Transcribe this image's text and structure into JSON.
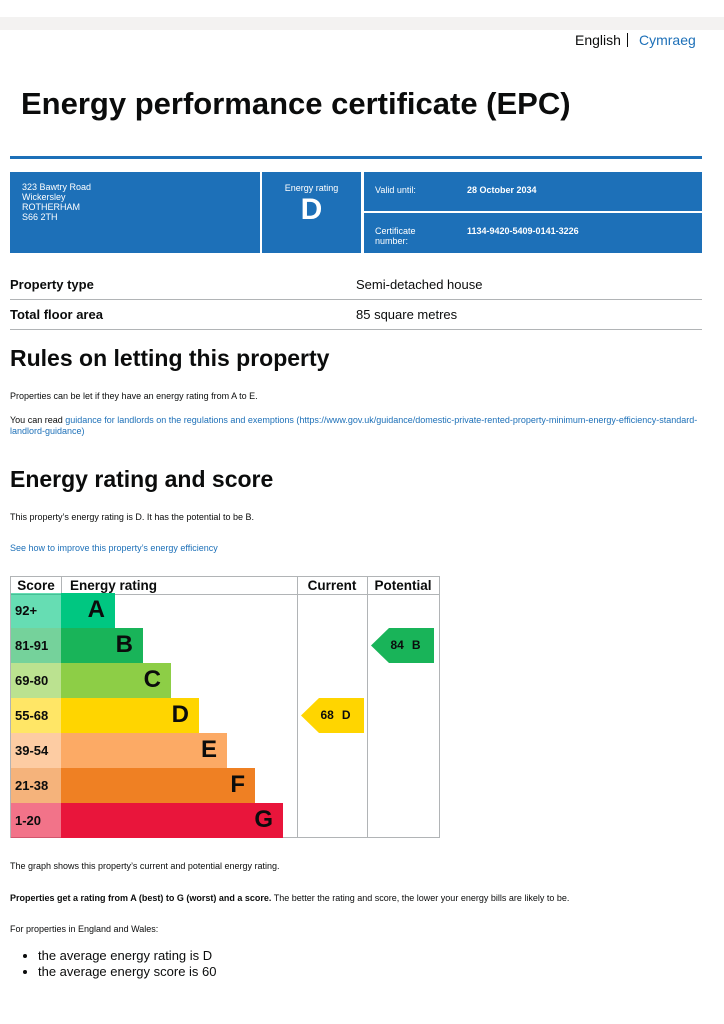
{
  "header": {
    "languages": [
      "English",
      "Cymraeg"
    ]
  },
  "title": "Energy performance certificate (EPC)",
  "summary": {
    "address": [
      "323 Bawtry Road",
      "Wickersley",
      "ROTHERHAM",
      "S66 2TH"
    ],
    "rating_label": "Energy rating",
    "rating": "D",
    "valid_label": "Valid until:",
    "valid": "28 October 2034",
    "cert_label": "Certificate number:",
    "cert": "1134-9420-5409-0141-3226"
  },
  "property": [
    {
      "label": "Property type",
      "value": "Semi-detached house"
    },
    {
      "label": "Total floor area",
      "value": "85 square metres"
    }
  ],
  "letting": {
    "heading": "Rules on letting this property",
    "text": "Properties can be let if they have an energy rating from A to E.",
    "link_prefix": "You can read ",
    "link": "guidance for landlords on the regulations and exemptions",
    "link_url": "(https://www.gov.uk/guidance/domestic-private-rented-property-minimum-energy-efficiency-standard-landlord-guidance)"
  },
  "energy": {
    "heading": "Energy rating and score",
    "text": "This property’s energy rating is D. It has the potential to be B.",
    "link": "See how to improve this property’s energy efficiency",
    "table": {
      "headers": [
        "Score",
        "Energy rating",
        "Current",
        "Potential"
      ],
      "bands": [
        {
          "score": "92+",
          "letter": "A",
          "color": "#00c781"
        },
        {
          "score": "81-91",
          "letter": "B",
          "color": "#19b459"
        },
        {
          "score": "69-80",
          "letter": "C",
          "color": "#8dce46"
        },
        {
          "score": "55-68",
          "letter": "D",
          "color": "#ffd500"
        },
        {
          "score": "39-54",
          "letter": "E",
          "color": "#fcaa65"
        },
        {
          "score": "21-38",
          "letter": "F",
          "color": "#ef8023"
        },
        {
          "score": "1-20",
          "letter": "G",
          "color": "#e9153b"
        }
      ],
      "current": {
        "value": 68,
        "letter": "D"
      },
      "potential": {
        "value": 84,
        "letter": "B"
      }
    }
  },
  "footer": {
    "graph_note": "The graph shows this property’s current and potential energy rating.",
    "bold": "Properties get a rating from A (best) to G (worst) and a score.",
    "rest": " The better the rating and score, the lower your energy bills are likely to be.",
    "region": "For properties in England and Wales:",
    "bullets": [
      "the average energy rating is D",
      "the average energy score is 60"
    ]
  }
}
